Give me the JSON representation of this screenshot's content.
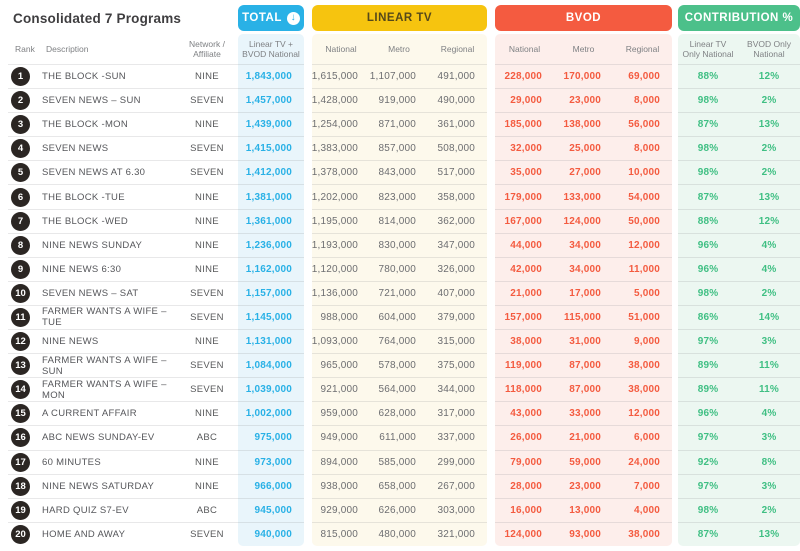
{
  "title": "Consolidated 7 Programs",
  "colors": {
    "total_accent": "#29b1e6",
    "linear_accent": "#f6c40f",
    "bvod_accent": "#f45b40",
    "contribution_accent": "#4cc08a",
    "rank_badge": "#2b2623"
  },
  "icons": {
    "total_sort": "sort-descending-icon",
    "total_sort_glyph": "↓"
  },
  "chart_data": {
    "type": "table",
    "title": "Consolidated 7 Programs",
    "base_columns": {
      "rank": "Rank",
      "description": "Description",
      "network": "Network / Affiliate"
    },
    "column_groups": [
      {
        "id": "total",
        "label": "TOTAL",
        "color": "#29b1e6",
        "columns": [
          "Linear TV + BVOD National"
        ]
      },
      {
        "id": "linear_tv",
        "label": "LINEAR TV",
        "color": "#f6c40f",
        "columns": [
          "National",
          "Metro",
          "Regional"
        ]
      },
      {
        "id": "bvod",
        "label": "BVOD",
        "color": "#f45b40",
        "columns": [
          "National",
          "Metro",
          "Regional"
        ]
      },
      {
        "id": "contribution",
        "label": "CONTRIBUTION %",
        "color": "#4cc08a",
        "columns": [
          "Linear TV Only National",
          "BVOD Only National"
        ]
      }
    ],
    "rows": [
      {
        "rank": "1",
        "description": "THE BLOCK -SUN",
        "network": "NINE",
        "total": "1,843,000",
        "linear": [
          "1,615,000",
          "1,107,000",
          "491,000"
        ],
        "bvod": [
          "228,000",
          "170,000",
          "69,000"
        ],
        "contribution": [
          "88%",
          "12%"
        ]
      },
      {
        "rank": "2",
        "description": "SEVEN NEWS – SUN",
        "network": "SEVEN",
        "total": "1,457,000",
        "linear": [
          "1,428,000",
          "919,000",
          "490,000"
        ],
        "bvod": [
          "29,000",
          "23,000",
          "8,000"
        ],
        "contribution": [
          "98%",
          "2%"
        ]
      },
      {
        "rank": "3",
        "description": "THE BLOCK -MON",
        "network": "NINE",
        "total": "1,439,000",
        "linear": [
          "1,254,000",
          "871,000",
          "361,000"
        ],
        "bvod": [
          "185,000",
          "138,000",
          "56,000"
        ],
        "contribution": [
          "87%",
          "13%"
        ]
      },
      {
        "rank": "4",
        "description": "SEVEN NEWS",
        "network": "SEVEN",
        "total": "1,415,000",
        "linear": [
          "1,383,000",
          "857,000",
          "508,000"
        ],
        "bvod": [
          "32,000",
          "25,000",
          "8,000"
        ],
        "contribution": [
          "98%",
          "2%"
        ]
      },
      {
        "rank": "5",
        "description": "SEVEN NEWS AT 6.30",
        "network": "SEVEN",
        "total": "1,412,000",
        "linear": [
          "1,378,000",
          "843,000",
          "517,000"
        ],
        "bvod": [
          "35,000",
          "27,000",
          "10,000"
        ],
        "contribution": [
          "98%",
          "2%"
        ]
      },
      {
        "rank": "6",
        "description": "THE BLOCK -TUE",
        "network": "NINE",
        "total": "1,381,000",
        "linear": [
          "1,202,000",
          "823,000",
          "358,000"
        ],
        "bvod": [
          "179,000",
          "133,000",
          "54,000"
        ],
        "contribution": [
          "87%",
          "13%"
        ]
      },
      {
        "rank": "7",
        "description": "THE BLOCK -WED",
        "network": "NINE",
        "total": "1,361,000",
        "linear": [
          "1,195,000",
          "814,000",
          "362,000"
        ],
        "bvod": [
          "167,000",
          "124,000",
          "50,000"
        ],
        "contribution": [
          "88%",
          "12%"
        ]
      },
      {
        "rank": "8",
        "description": "NINE NEWS SUNDAY",
        "network": "NINE",
        "total": "1,236,000",
        "linear": [
          "1,193,000",
          "830,000",
          "347,000"
        ],
        "bvod": [
          "44,000",
          "34,000",
          "12,000"
        ],
        "contribution": [
          "96%",
          "4%"
        ]
      },
      {
        "rank": "9",
        "description": "NINE NEWS 6:30",
        "network": "NINE",
        "total": "1,162,000",
        "linear": [
          "1,120,000",
          "780,000",
          "326,000"
        ],
        "bvod": [
          "42,000",
          "34,000",
          "11,000"
        ],
        "contribution": [
          "96%",
          "4%"
        ]
      },
      {
        "rank": "10",
        "description": "SEVEN NEWS – SAT",
        "network": "SEVEN",
        "total": "1,157,000",
        "linear": [
          "1,136,000",
          "721,000",
          "407,000"
        ],
        "bvod": [
          "21,000",
          "17,000",
          "5,000"
        ],
        "contribution": [
          "98%",
          "2%"
        ]
      },
      {
        "rank": "11",
        "description": "FARMER WANTS A WIFE – TUE",
        "network": "SEVEN",
        "total": "1,145,000",
        "linear": [
          "988,000",
          "604,000",
          "379,000"
        ],
        "bvod": [
          "157,000",
          "115,000",
          "51,000"
        ],
        "contribution": [
          "86%",
          "14%"
        ]
      },
      {
        "rank": "12",
        "description": "NINE NEWS",
        "network": "NINE",
        "total": "1,131,000",
        "linear": [
          "1,093,000",
          "764,000",
          "315,000"
        ],
        "bvod": [
          "38,000",
          "31,000",
          "9,000"
        ],
        "contribution": [
          "97%",
          "3%"
        ]
      },
      {
        "rank": "13",
        "description": "FARMER WANTS A WIFE – SUN",
        "network": "SEVEN",
        "total": "1,084,000",
        "linear": [
          "965,000",
          "578,000",
          "375,000"
        ],
        "bvod": [
          "119,000",
          "87,000",
          "38,000"
        ],
        "contribution": [
          "89%",
          "11%"
        ]
      },
      {
        "rank": "14",
        "description": "FARMER WANTS A WIFE – MON",
        "network": "SEVEN",
        "total": "1,039,000",
        "linear": [
          "921,000",
          "564,000",
          "344,000"
        ],
        "bvod": [
          "118,000",
          "87,000",
          "38,000"
        ],
        "contribution": [
          "89%",
          "11%"
        ]
      },
      {
        "rank": "15",
        "description": "A CURRENT AFFAIR",
        "network": "NINE",
        "total": "1,002,000",
        "linear": [
          "959,000",
          "628,000",
          "317,000"
        ],
        "bvod": [
          "43,000",
          "33,000",
          "12,000"
        ],
        "contribution": [
          "96%",
          "4%"
        ]
      },
      {
        "rank": "16",
        "description": "ABC NEWS SUNDAY-EV",
        "network": "ABC",
        "total": "975,000",
        "linear": [
          "949,000",
          "611,000",
          "337,000"
        ],
        "bvod": [
          "26,000",
          "21,000",
          "6,000"
        ],
        "contribution": [
          "97%",
          "3%"
        ]
      },
      {
        "rank": "17",
        "description": "60 MINUTES",
        "network": "NINE",
        "total": "973,000",
        "linear": [
          "894,000",
          "585,000",
          "299,000"
        ],
        "bvod": [
          "79,000",
          "59,000",
          "24,000"
        ],
        "contribution": [
          "92%",
          "8%"
        ]
      },
      {
        "rank": "18",
        "description": "NINE NEWS SATURDAY",
        "network": "NINE",
        "total": "966,000",
        "linear": [
          "938,000",
          "658,000",
          "267,000"
        ],
        "bvod": [
          "28,000",
          "23,000",
          "7,000"
        ],
        "contribution": [
          "97%",
          "3%"
        ]
      },
      {
        "rank": "19",
        "description": "HARD QUIZ S7-EV",
        "network": "ABC",
        "total": "945,000",
        "linear": [
          "929,000",
          "626,000",
          "303,000"
        ],
        "bvod": [
          "16,000",
          "13,000",
          "4,000"
        ],
        "contribution": [
          "98%",
          "2%"
        ]
      },
      {
        "rank": "20",
        "description": "HOME AND AWAY",
        "network": "SEVEN",
        "total": "940,000",
        "linear": [
          "815,000",
          "480,000",
          "321,000"
        ],
        "bvod": [
          "124,000",
          "93,000",
          "38,000"
        ],
        "contribution": [
          "87%",
          "13%"
        ]
      }
    ]
  }
}
